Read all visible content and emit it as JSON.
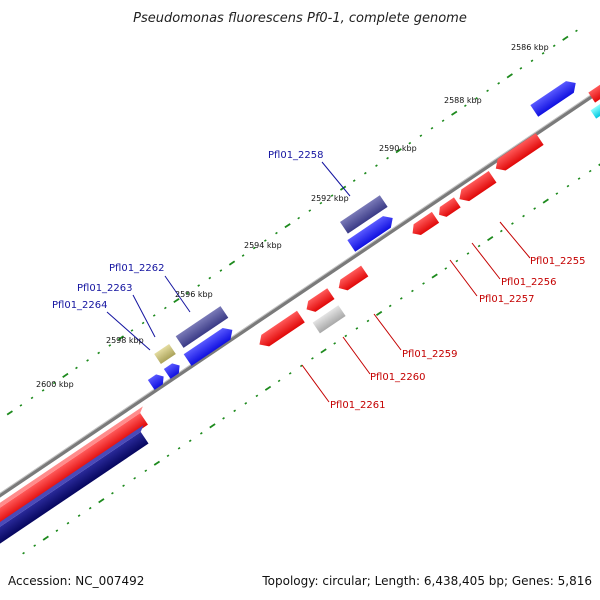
{
  "title": "Pseudomonas fluorescens Pf0-1, complete genome",
  "footer": {
    "accession": "Accession: NC_007492",
    "summary": "Topology: circular; Length: 6,438,405 bp; Genes: 5,816"
  },
  "kbp_labels": [
    "2586 kbp",
    "2588 kbp",
    "2590 kbp",
    "2592 kbp",
    "2594 kbp",
    "2596 kbp",
    "2598 kbp",
    "2600 kbp"
  ],
  "gene_labels": {
    "forward": [
      "Pfl01_2258",
      "Pfl01_2262",
      "Pfl01_2263",
      "Pfl01_2264"
    ],
    "reverse": [
      "Pfl01_2255",
      "Pfl01_2256",
      "Pfl01_2257",
      "Pfl01_2259",
      "Pfl01_2260",
      "Pfl01_2261"
    ]
  },
  "colors": {
    "forward_gene": "#1c1cf0",
    "forward_gene_dark": "#4a4a9a",
    "forward_gene_navy": "#10107a",
    "reverse_gene": "#f01414",
    "pseudogene_gray": "#bdbdbd",
    "rna_khaki": "#c8c07a",
    "rrna_cyan": "#00e0f0",
    "backbone": "#8a8a8a",
    "tick_dot": "#1d8a1d"
  }
}
